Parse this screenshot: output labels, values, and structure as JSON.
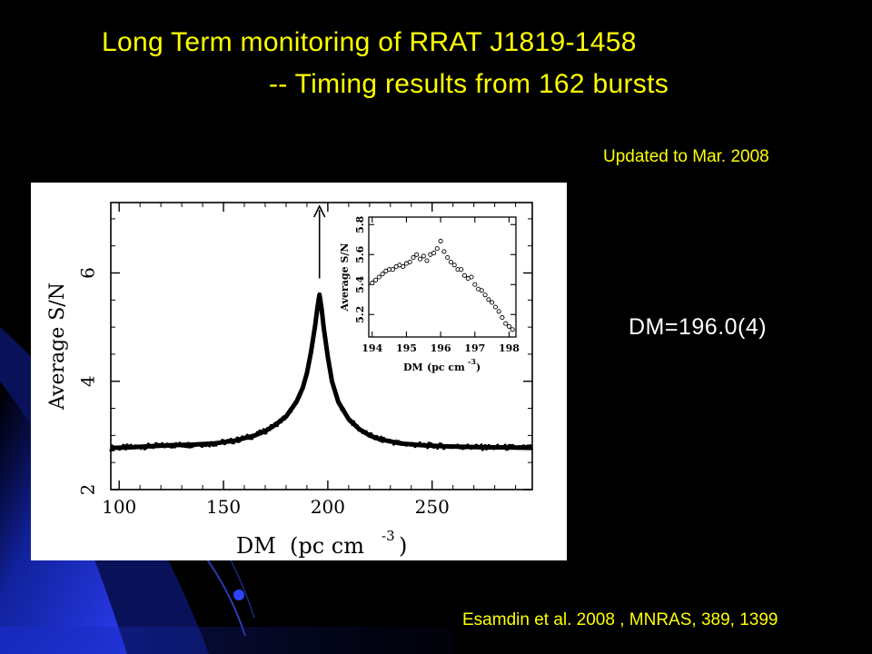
{
  "slide": {
    "title_line1": "Long Term  monitoring of RRAT J1819-1458",
    "title_line2": "-- Timing results  from  162 bursts",
    "updated": "Updated to Mar. 2008",
    "dm_result": "DM=196.0(4)",
    "citation": "Esamdin et al. 2008 , MNRAS, 389, 1399",
    "colors": {
      "background": "#000000",
      "title": "#ffff00",
      "result_text": "#ffffff",
      "swoosh": "#1a2fd6"
    }
  },
  "chart_data": [
    {
      "type": "line",
      "role": "main",
      "title": "",
      "xlabel": "DM",
      "xlabel_units": "(pc cm",
      "xlabel_exp": "-3",
      "xlabel_close": ")",
      "ylabel": "Average S/N",
      "xlim": [
        96,
        298
      ],
      "ylim": [
        2,
        7.3
      ],
      "xticks": [
        100,
        150,
        200,
        250
      ],
      "yticks": [
        2,
        4,
        6
      ],
      "peak_marker": "arrow",
      "series": [
        {
          "x": [
            96,
            105,
            115,
            125,
            135,
            145,
            155,
            165,
            170,
            175,
            180,
            185,
            188,
            190,
            192,
            194,
            195,
            196,
            197,
            198,
            200,
            202,
            205,
            210,
            215,
            220,
            225,
            235,
            245,
            255,
            265,
            275,
            285,
            298
          ],
          "y": [
            2.77,
            2.78,
            2.8,
            2.82,
            2.83,
            2.85,
            2.9,
            3.0,
            3.08,
            3.2,
            3.35,
            3.62,
            3.88,
            4.15,
            4.55,
            5.05,
            5.35,
            5.6,
            5.35,
            5.0,
            4.45,
            4.0,
            3.62,
            3.3,
            3.12,
            3.0,
            2.93,
            2.85,
            2.82,
            2.8,
            2.79,
            2.78,
            2.78,
            2.77
          ]
        }
      ]
    },
    {
      "type": "scatter",
      "role": "inset",
      "title": "",
      "xlabel": "DM",
      "xlabel_units": "(pc cm",
      "xlabel_exp": "-3",
      "xlabel_close": ")",
      "ylabel": "Average S/N",
      "xlim": [
        193.9,
        198.2
      ],
      "ylim": [
        5.05,
        5.85
      ],
      "xticks": [
        194,
        195,
        196,
        197,
        198
      ],
      "yticks": [
        5.2,
        5.4,
        5.6,
        5.8
      ],
      "series": [
        {
          "x": [
            194.0,
            194.1,
            194.2,
            194.3,
            194.4,
            194.5,
            194.6,
            194.7,
            194.8,
            194.9,
            195.0,
            195.1,
            195.2,
            195.3,
            195.4,
            195.5,
            195.6,
            195.7,
            195.8,
            195.9,
            196.0,
            196.1,
            196.2,
            196.3,
            196.4,
            196.5,
            196.6,
            196.7,
            196.8,
            196.9,
            197.0,
            197.1,
            197.2,
            197.3,
            197.4,
            197.5,
            197.6,
            197.7,
            197.8,
            197.9,
            198.0,
            198.1
          ],
          "y": [
            5.41,
            5.43,
            5.45,
            5.47,
            5.49,
            5.5,
            5.5,
            5.52,
            5.53,
            5.52,
            5.54,
            5.55,
            5.58,
            5.6,
            5.57,
            5.59,
            5.56,
            5.6,
            5.61,
            5.64,
            5.69,
            5.62,
            5.58,
            5.55,
            5.53,
            5.5,
            5.5,
            5.46,
            5.44,
            5.45,
            5.4,
            5.37,
            5.36,
            5.33,
            5.3,
            5.28,
            5.25,
            5.22,
            5.18,
            5.14,
            5.12,
            5.1
          ]
        }
      ]
    }
  ]
}
